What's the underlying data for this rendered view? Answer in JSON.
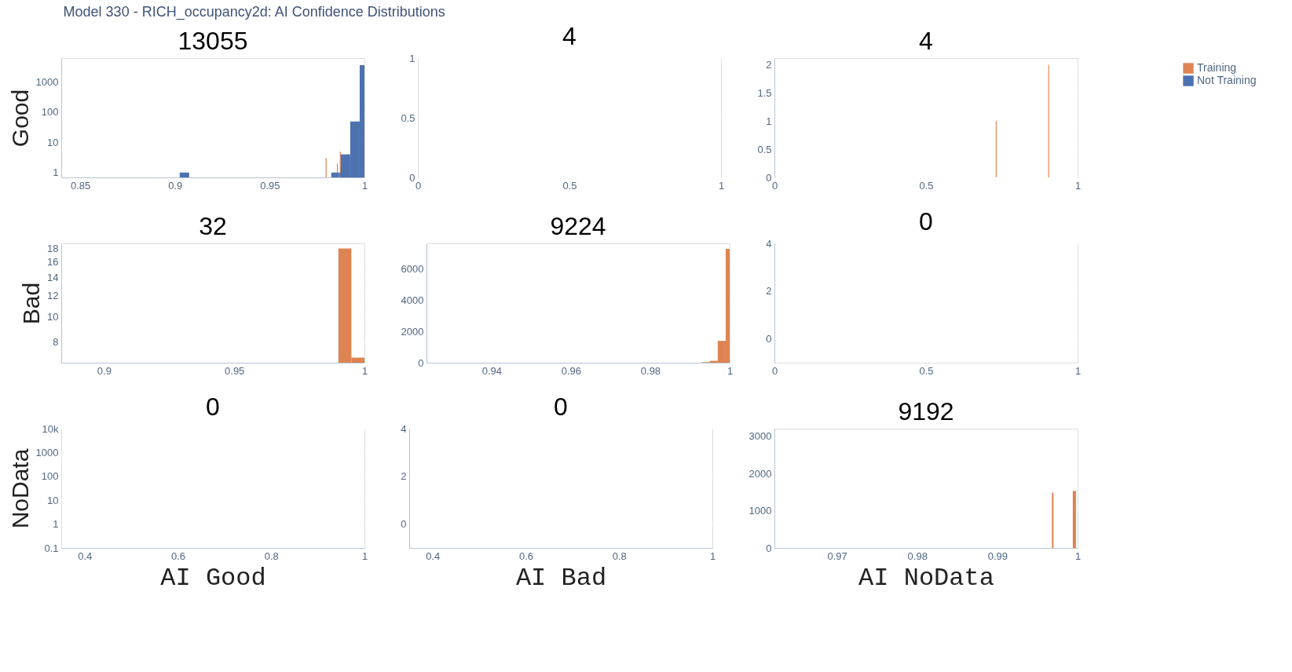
{
  "chart_data": [
    {
      "type": "histogram",
      "title": "13055",
      "ylabel": "Good",
      "annotations": [
        "Model 330 - RICH_occupancy2d: AI Confidence Distributions"
      ],
      "log": true,
      "xlim": [
        0.84,
        1
      ],
      "xticks": [
        0.85,
        0.9,
        0.95,
        1
      ],
      "ylim": [
        0.69,
        6200
      ],
      "yticks": [
        1,
        10,
        100,
        1000
      ],
      "grid": "y",
      "legend": "top right",
      "bins": [
        0.9025,
        0.9075,
        0.9795,
        0.98,
        0.9825,
        0.9855,
        0.986,
        0.987,
        0.9875,
        0.9925,
        0.9975,
        1
      ],
      "series": [
        {
          "name": "Training",
          "color": "#dd8452",
          "values": [
            null,
            null,
            3,
            null,
            null,
            2,
            null,
            5,
            null,
            null,
            null
          ]
        },
        {
          "name": "Not Training",
          "color": "#4c72b0",
          "values": [
            1,
            null,
            null,
            null,
            1,
            1,
            1,
            1,
            4,
            49,
            3600
          ]
        }
      ]
    },
    {
      "type": "histogram",
      "title": "4",
      "xlim": [
        0,
        1
      ],
      "xticks": [
        0,
        0.5,
        1
      ],
      "ylim": [
        0,
        1
      ],
      "yticks": [
        0,
        0.5,
        1
      ],
      "grid": "y"
    },
    {
      "type": "histogram",
      "title": "4",
      "xlim": [
        0,
        1
      ],
      "xticks": [
        0,
        0.5,
        1
      ],
      "ylim": [
        0,
        2.12
      ],
      "yticks": [
        0,
        0.5,
        1,
        1.5,
        2
      ],
      "grid": "y",
      "color": "#dd8452",
      "bins": [
        0.73,
        0.733,
        0.903,
        0.906
      ],
      "values": [
        1,
        null,
        2
      ]
    },
    {
      "type": "histogram",
      "title": "32",
      "ylabel": "Bad",
      "log": true,
      "xlim": [
        0.8836,
        1
      ],
      "xticks": [
        0.9,
        0.95,
        1
      ],
      "ylim": [
        6.7,
        18.8
      ],
      "yticks": [
        8,
        10,
        12,
        14,
        16,
        18
      ],
      "grid": "y",
      "color": "#dd8452",
      "bins": [
        0.99,
        0.995,
        1
      ],
      "values": [
        18,
        7
      ]
    },
    {
      "type": "histogram",
      "title": "9224",
      "xlim": [
        0.9236,
        1
      ],
      "xticks": [
        0.94,
        0.96,
        0.98,
        1
      ],
      "ylim": [
        0,
        7650
      ],
      "yticks": [
        0,
        2000,
        4000,
        6000
      ],
      "grid": "y",
      "color": "#dd8452",
      "bins": [
        0.993,
        0.995,
        0.997,
        0.999,
        1
      ],
      "values": [
        40,
        120,
        1400,
        7300
      ]
    },
    {
      "type": "histogram",
      "title": "0",
      "xlim": [
        0,
        1
      ],
      "xticks": [
        0,
        0.5,
        1
      ],
      "ylim": [
        -1,
        4
      ],
      "yticks": [
        0,
        2,
        4
      ],
      "grid": "y"
    },
    {
      "type": "histogram",
      "title": "0",
      "ylabel": "NoData",
      "xlabel": "AI Good",
      "log": true,
      "xlim": [
        0.35,
        1
      ],
      "xticks": [
        0.4,
        0.6,
        0.8,
        1
      ],
      "ylim": [
        0.1,
        10000
      ],
      "yticks": [
        0.1,
        1,
        10,
        100,
        1000,
        {
          "value": 10000,
          "label": "10k"
        }
      ],
      "grid": "y"
    },
    {
      "type": "histogram",
      "title": "0",
      "xlabel": "AI Bad",
      "xlim": [
        0.35,
        1
      ],
      "xticks": [
        0.4,
        0.6,
        0.8,
        1
      ],
      "ylim": [
        -1,
        4
      ],
      "yticks": [
        0,
        2,
        4
      ],
      "grid": "y"
    },
    {
      "type": "histogram",
      "title": "9192",
      "xlabel": "AI NoData",
      "xlim": [
        0.9622,
        1
      ],
      "xticks": [
        0.97,
        0.98,
        0.99,
        1
      ],
      "ylim": [
        0,
        3200
      ],
      "yticks": [
        0,
        1000,
        2000,
        3000
      ],
      "grid": "y",
      "color": "#dd8452",
      "bins": [
        0.9968,
        0.997,
        0.9994,
        0.9998
      ],
      "values": [
        1480,
        null,
        1530
      ]
    }
  ]
}
